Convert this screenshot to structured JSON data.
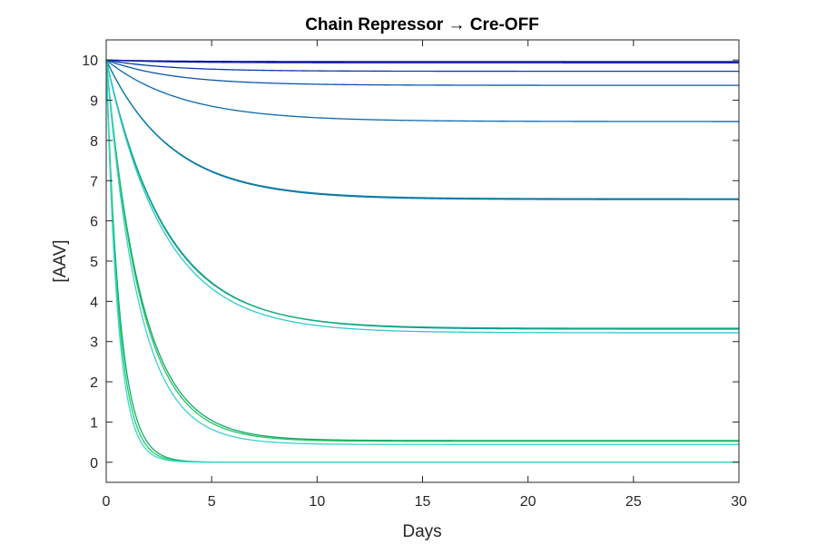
{
  "chart_data": {
    "type": "line",
    "title": "Chain Repressor → Cre-OFF",
    "xlabel": "Days",
    "ylabel": "[AAV]",
    "xlim": [
      0,
      30
    ],
    "ylim": [
      -0.5,
      10.5
    ],
    "xticks": [
      "0",
      "5",
      "10",
      "15",
      "20",
      "25",
      "30"
    ],
    "yticks": [
      "0",
      "1",
      "2",
      "3",
      "4",
      "5",
      "6",
      "7",
      "8",
      "9",
      "10"
    ],
    "grid": false,
    "legend": "none",
    "colors": {
      "axis": "#262626",
      "palette": [
        "#0a1a9c",
        "#0b2fa8",
        "#0a48ad",
        "#0a5eb0",
        "#0b6fb2",
        "#0c7db2",
        "#0e8aa8",
        "#12a08a",
        "#1ab866",
        "#22c94a",
        "#2fd3c6"
      ]
    },
    "series": [
      {
        "start": 10,
        "plateau": 9.96,
        "tau": 3.0
      },
      {
        "start": 10,
        "plateau": 9.93,
        "tau": 3.0
      },
      {
        "start": 10,
        "plateau": 9.72,
        "tau": 3.0
      },
      {
        "start": 10,
        "plateau": 9.37,
        "tau": 3.2
      },
      {
        "start": 10,
        "plateau": 8.47,
        "tau": 3.6
      },
      {
        "start": 10,
        "plateau": 6.53,
        "tau": 3.1
      },
      {
        "start": 10,
        "plateau": 6.55,
        "tau": 3.1
      },
      {
        "start": 10,
        "plateau": 3.31,
        "tau": 2.85
      },
      {
        "start": 10,
        "plateau": 3.33,
        "tau": 2.8
      },
      {
        "start": 10,
        "plateau": 3.22,
        "tau": 2.75
      },
      {
        "start": 10,
        "plateau": 0.54,
        "tau": 1.7
      },
      {
        "start": 10,
        "plateau": 0.52,
        "tau": 1.65
      },
      {
        "start": 10,
        "plateau": 0.44,
        "tau": 1.55
      },
      {
        "start": 10,
        "plateau": 0.0,
        "tau": 0.65
      },
      {
        "start": 10,
        "plateau": 0.0,
        "tau": 0.6
      },
      {
        "start": 10,
        "plateau": 0.0,
        "tau": 0.55
      }
    ],
    "series_colors": [
      "#0a0f96",
      "#0a1fa4",
      "#0a3aab",
      "#0b55ae",
      "#0b68b0",
      "#0c74ae",
      "#0d7fa0",
      "#0e8a9e",
      "#14b07a",
      "#2fc8d0",
      "#13a37a",
      "#22c553",
      "#3bd0cf",
      "#1aa37c",
      "#20d24c",
      "#35d8d8"
    ]
  }
}
